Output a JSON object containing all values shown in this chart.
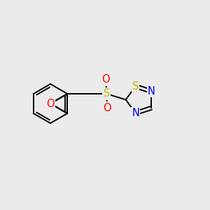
{
  "background_color": "#ebebeb",
  "bond_color": "#000000",
  "atom_colors": {
    "O": "#ff0000",
    "S_thia": "#bbbb00",
    "N": "#0000ee",
    "S_sulfonyl": "#bbbb00"
  },
  "figsize": [
    3.0,
    3.0
  ],
  "dpi": 100
}
